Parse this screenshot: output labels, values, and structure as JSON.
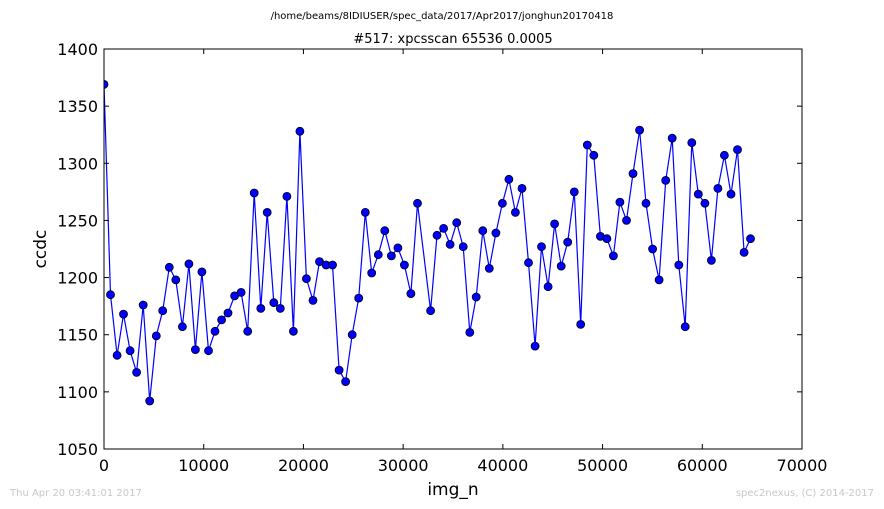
{
  "header": {
    "path": "/home/beams/8IDIUSER/spec_data/2017/Apr2017/jonghun20170418"
  },
  "footer": {
    "timestamp": "Thu Apr 20 03:41:01 2017",
    "credit": "spec2nexus, (C) 2014-2017"
  },
  "colors": {
    "line": "#0000ff",
    "marker_fill": "#0000ff",
    "marker_edge": "#000000",
    "footer_text": "#c8c8c8"
  },
  "chart_data": {
    "type": "line",
    "title": "#517: xpcsscan 65536 0.0005",
    "xlabel": "img_n",
    "ylabel": "ccdc",
    "xlim": [
      0,
      70000
    ],
    "ylim": [
      1050,
      1400
    ],
    "xticks": [
      0,
      10000,
      20000,
      30000,
      40000,
      50000,
      60000,
      70000
    ],
    "yticks": [
      1050,
      1100,
      1150,
      1200,
      1250,
      1300,
      1350,
      1400
    ],
    "grid": false,
    "markers": true,
    "series": [
      {
        "x": [
          0,
          650,
          1310,
          1960,
          2620,
          3270,
          3930,
          4580,
          5240,
          5890,
          6550,
          7200,
          7860,
          8510,
          9170,
          9820,
          10480,
          11130,
          11790,
          12440,
          13100,
          13750,
          14410,
          15060,
          15720,
          16370,
          17030,
          17680,
          18340,
          18990,
          19650,
          20300,
          20960,
          21610,
          22270,
          22920,
          23580,
          24230,
          24890,
          25540,
          26200,
          26850,
          27510,
          28160,
          28820,
          29470,
          30130,
          30780,
          31440,
          32750,
          33400,
          34060,
          34710,
          35370,
          36020,
          36680,
          37330,
          37990,
          38640,
          39300,
          39950,
          40610,
          41260,
          41920,
          42570,
          43230,
          43880,
          44540,
          45190,
          45850,
          46500,
          47160,
          47810,
          48470,
          49120,
          49780,
          50430,
          51090,
          51740,
          52400,
          53050,
          53710,
          54360,
          55020,
          55670,
          56330,
          56980,
          57640,
          58290,
          58950,
          59600,
          60260,
          60910,
          61570,
          62220,
          62880,
          63530,
          64190,
          64840
        ],
        "y": [
          1369,
          1185,
          1132,
          1168,
          1136,
          1117,
          1176,
          1092,
          1149,
          1171,
          1209,
          1198,
          1157,
          1212,
          1137,
          1205,
          1136,
          1153,
          1163,
          1169,
          1184,
          1187,
          1153,
          1274,
          1173,
          1257,
          1178,
          1173,
          1271,
          1153,
          1328,
          1199,
          1180,
          1214,
          1211,
          1211,
          1119,
          1109,
          1150,
          1182,
          1257,
          1204,
          1220,
          1241,
          1219,
          1226,
          1211,
          1186,
          1265,
          1171,
          1237,
          1243,
          1229,
          1248,
          1227,
          1152,
          1183,
          1241,
          1208,
          1239,
          1265,
          1286,
          1257,
          1278,
          1213,
          1140,
          1227,
          1192,
          1247,
          1210,
          1231,
          1275,
          1159,
          1316,
          1307,
          1236,
          1234,
          1219,
          1266,
          1250,
          1291,
          1329,
          1265,
          1225,
          1198,
          1285,
          1322,
          1211,
          1157,
          1318,
          1273,
          1265,
          1215,
          1278,
          1307,
          1273,
          1312,
          1222,
          1234
        ]
      }
    ]
  }
}
